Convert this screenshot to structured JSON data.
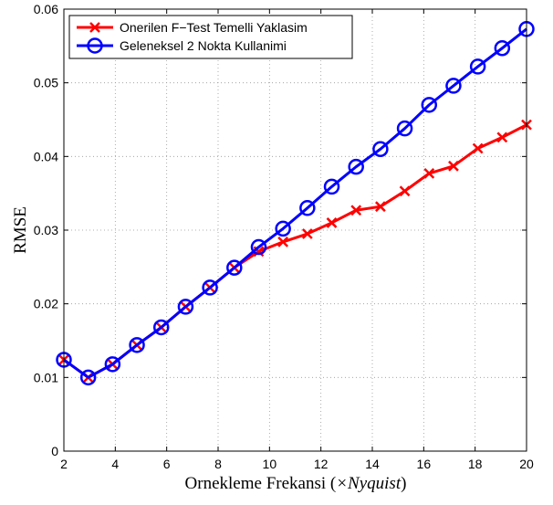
{
  "chart_data": {
    "type": "line",
    "xlabel": "Ornekleme Frekansi (×Nyquist)",
    "xlabel_plain": "Ornekleme Frekansi (",
    "xlabel_italic": "×Nyquist",
    "xlabel_close": ")",
    "ylabel": "RMSE",
    "xlim": [
      2,
      20
    ],
    "ylim": [
      0,
      0.06
    ],
    "xticks": [
      2,
      4,
      6,
      8,
      10,
      12,
      14,
      16,
      18,
      20
    ],
    "xtick_labels": [
      "2",
      "4",
      "6",
      "8",
      "10",
      "12",
      "14",
      "16",
      "18",
      "20"
    ],
    "yticks": [
      0,
      0.01,
      0.02,
      0.03,
      0.04,
      0.05,
      0.06
    ],
    "ytick_labels": [
      "0",
      "0.01",
      "0.02",
      "0.03",
      "0.04",
      "0.05",
      "0.06"
    ],
    "grid": true,
    "legend_position": "top-left",
    "x": [
      2,
      2.947,
      3.895,
      4.842,
      5.789,
      6.737,
      7.684,
      8.632,
      9.579,
      10.526,
      11.474,
      12.421,
      13.368,
      14.316,
      15.263,
      16.211,
      17.158,
      18.105,
      19.053,
      20
    ],
    "series": [
      {
        "name": "Onerilen F−Test Temelli Yaklasim",
        "color": "#ff0000",
        "marker": "x",
        "values": [
          0.0124,
          0.01,
          0.0118,
          0.0144,
          0.0168,
          0.0196,
          0.0222,
          0.0249,
          0.0271,
          0.0284,
          0.0295,
          0.031,
          0.0327,
          0.0332,
          0.0353,
          0.0377,
          0.0387,
          0.0411,
          0.0426,
          0.0443
        ]
      },
      {
        "name": "Geleneksel 2 Nokta Kullanimi",
        "color": "#0000ff",
        "marker": "o",
        "values": [
          0.0124,
          0.01,
          0.0118,
          0.0144,
          0.0168,
          0.0196,
          0.0222,
          0.0249,
          0.0277,
          0.0302,
          0.033,
          0.0359,
          0.0386,
          0.041,
          0.0438,
          0.047,
          0.0496,
          0.0522,
          0.0547,
          0.0573
        ]
      }
    ]
  }
}
